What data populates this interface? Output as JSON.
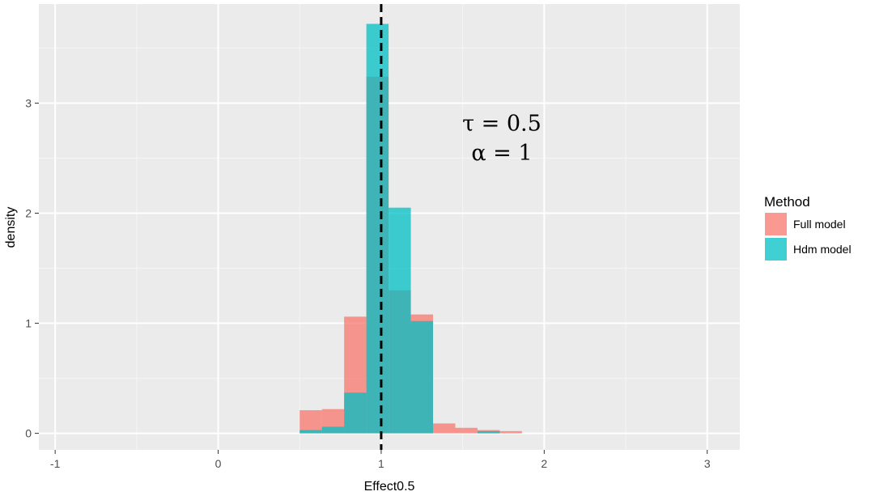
{
  "chart_data": {
    "type": "bar",
    "subtype": "histogram-overlay",
    "xlabel": "Effect0.5",
    "ylabel": "density",
    "xlim": [
      -1.1,
      3.2
    ],
    "ylim": [
      -0.15,
      3.9
    ],
    "x_ticks": [
      -1,
      0,
      1,
      2,
      3
    ],
    "y_ticks": [
      0,
      1,
      2,
      3
    ],
    "grid": true,
    "bin_width": 0.1364,
    "bin_starts": [
      0.5,
      0.6364,
      0.7727,
      0.9091,
      1.0455,
      1.1818,
      1.3182,
      1.4545,
      1.5909,
      1.7273
    ],
    "series": [
      {
        "name": "Full model",
        "color": "#F8766D",
        "values": [
          0.21,
          0.22,
          1.06,
          3.24,
          1.3,
          1.08,
          0.09,
          0.05,
          0.03,
          0.02
        ]
      },
      {
        "name": "Hdm model",
        "color": "#00BFC4",
        "values": [
          0.03,
          0.06,
          0.37,
          3.72,
          2.05,
          1.02,
          0.0,
          0.0,
          0.02,
          0.0
        ]
      }
    ],
    "vline": {
      "x": 1,
      "style": "dashed"
    },
    "annotation": {
      "line1": "τ = 0.5",
      "line2": "α = 1",
      "x": 1.74,
      "y1": 2.75,
      "y2": 2.48
    },
    "legend": {
      "title": "Method",
      "placement": "right"
    }
  }
}
